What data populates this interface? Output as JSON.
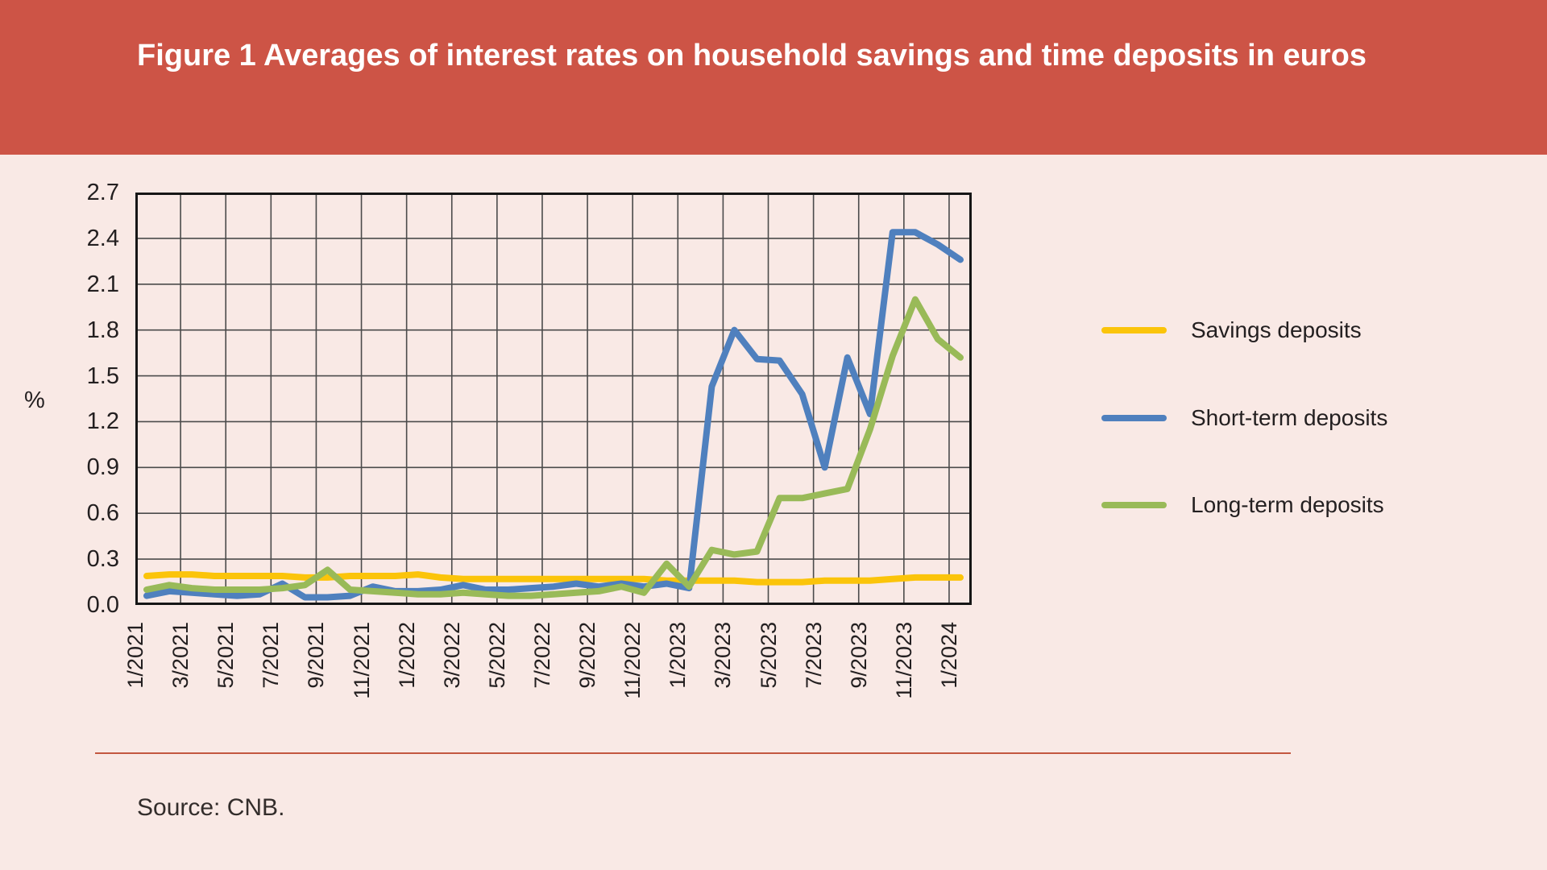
{
  "title": "Figure 1 Averages of interest rates on household savings and time deposits in euros",
  "source": "Source: CNB.",
  "axis": {
    "y_unit": "%",
    "y_ticks": [
      "0.0",
      "0.3",
      "0.6",
      "0.9",
      "1.2",
      "1.5",
      "1.8",
      "2.1",
      "2.4",
      "2.7"
    ],
    "x_tick_every": 2
  },
  "colors": {
    "banner": "#cd5446",
    "background": "#f9e9e5",
    "grid": "#4b4b4b",
    "border": "#161616",
    "text": "#231f20",
    "divider": "#c3573f",
    "savings": "#fbc40a",
    "short_term": "#4f80be",
    "long_term": "#99ba58"
  },
  "legend": [
    {
      "label": "Savings deposits",
      "color": "#fbc40a"
    },
    {
      "label": "Short-term deposits",
      "color": "#4f80be"
    },
    {
      "label": "Long-term deposits",
      "color": "#99ba58"
    }
  ],
  "chart_data": {
    "type": "line",
    "title": "Figure 1 Averages of interest rates on household savings and time deposits in euros",
    "ylabel": "%",
    "ylim": [
      0,
      2.7
    ],
    "ytick_step": 0.3,
    "grid": true,
    "legend_position": "right",
    "x": [
      "1/2021",
      "2/2021",
      "3/2021",
      "4/2021",
      "5/2021",
      "6/2021",
      "7/2021",
      "8/2021",
      "9/2021",
      "10/2021",
      "11/2021",
      "12/2021",
      "1/2022",
      "2/2022",
      "3/2022",
      "4/2022",
      "5/2022",
      "6/2022",
      "7/2022",
      "8/2022",
      "9/2022",
      "10/2022",
      "11/2022",
      "12/2022",
      "1/2023",
      "2/2023",
      "3/2023",
      "4/2023",
      "5/2023",
      "6/2023",
      "7/2023",
      "8/2023",
      "9/2023",
      "10/2023",
      "11/2023",
      "12/2023",
      "1/2024"
    ],
    "series": [
      {
        "name": "Savings deposits",
        "color": "#fbc40a",
        "values": [
          0.19,
          0.2,
          0.2,
          0.19,
          0.19,
          0.19,
          0.19,
          0.18,
          0.18,
          0.19,
          0.19,
          0.19,
          0.2,
          0.18,
          0.17,
          0.17,
          0.17,
          0.17,
          0.17,
          0.17,
          0.17,
          0.17,
          0.17,
          0.16,
          0.16,
          0.16,
          0.16,
          0.15,
          0.15,
          0.15,
          0.16,
          0.16,
          0.16,
          0.17,
          0.18,
          0.18,
          0.18
        ]
      },
      {
        "name": "Short-term deposits",
        "color": "#4f80be",
        "values": [
          0.06,
          0.09,
          0.08,
          0.07,
          0.06,
          0.07,
          0.14,
          0.05,
          0.05,
          0.06,
          0.12,
          0.09,
          0.09,
          0.1,
          0.13,
          0.1,
          0.1,
          0.11,
          0.12,
          0.14,
          0.12,
          0.14,
          0.12,
          0.14,
          0.11,
          1.43,
          1.8,
          1.61,
          1.6,
          1.38,
          0.9,
          1.62,
          1.25,
          2.44,
          2.44,
          2.36,
          2.26
        ]
      },
      {
        "name": "Long-term deposits",
        "color": "#99ba58",
        "values": [
          0.1,
          0.13,
          0.11,
          0.1,
          0.1,
          0.1,
          0.11,
          0.13,
          0.23,
          0.1,
          0.09,
          0.08,
          0.07,
          0.07,
          0.08,
          0.07,
          0.06,
          0.06,
          0.07,
          0.08,
          0.09,
          0.12,
          0.08,
          0.27,
          0.12,
          0.36,
          0.33,
          0.35,
          0.7,
          0.7,
          0.73,
          0.76,
          1.15,
          1.63,
          2.0,
          1.74,
          1.62
        ]
      }
    ]
  }
}
